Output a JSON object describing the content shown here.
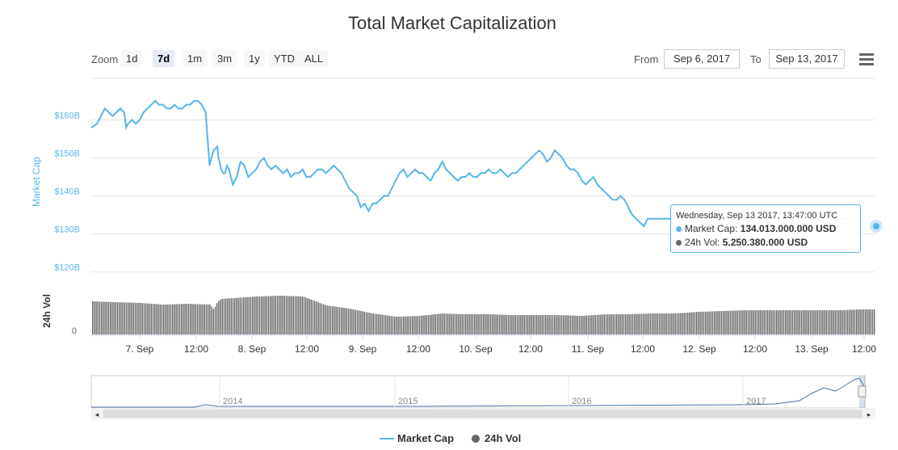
{
  "page_title": "Total Market Capitalization",
  "zoom": {
    "label": "Zoom",
    "buttons": [
      "1d",
      "7d",
      "1m",
      "3m",
      "1y",
      "YTD",
      "ALL"
    ],
    "active": "7d"
  },
  "range": {
    "from_label": "From",
    "from_value": "Sep 6, 2017",
    "to_label": "To",
    "to_value": "Sep 13, 2017"
  },
  "menu_icon": "hamburger-menu-icon",
  "colors": {
    "market_cap": "#58b5ea",
    "volume": "#666666",
    "grid": "#e6e6e6",
    "navigator": "#4572a7"
  },
  "tooltip": {
    "header": "Wednesday, Sep 13 2017, 13:47:00 UTC",
    "market_cap_label": "Market Cap:",
    "market_cap_value": "134.013.000.000 USD",
    "volume_label": "24h Vol:",
    "volume_value": "5.250.380.000 USD"
  },
  "legend": [
    {
      "name": "Market Cap",
      "color": "#58b5ea",
      "symbol": "line"
    },
    {
      "name": "24h Vol",
      "color": "#666666",
      "symbol": "circle"
    }
  ],
  "chart_data": {
    "type": "line",
    "title": "Total Market Capitalization",
    "ylabel": "Market Cap",
    "ylabel_secondary": "24h Vol",
    "x_tick_labels": [
      "7. Sep",
      "12:00",
      "8. Sep",
      "12:00",
      "9. Sep",
      "12:00",
      "10. Sep",
      "12:00",
      "11. Sep",
      "12:00",
      "12. Sep",
      "12:00",
      "13. Sep",
      "12:00"
    ],
    "y_tick_labels": [
      "$120B",
      "$130B",
      "$140B",
      "$150B",
      "$160B"
    ],
    "volume_tick_labels": [
      "0"
    ],
    "ylim": [
      118,
      172
    ],
    "x_range_hours": [
      -6.5,
      35.7
    ],
    "series": [
      {
        "name": "Market Cap",
        "unit": "USD billions",
        "x_hours_from_sep6": [
          -6.5,
          -5,
          -4,
          -3,
          -2,
          -1,
          0,
          1,
          2,
          2.5,
          3,
          4,
          5,
          6,
          7,
          8,
          9,
          10,
          11,
          12,
          13,
          14,
          15,
          16,
          17,
          18,
          19,
          20,
          21,
          22,
          23,
          24,
          25,
          26,
          26.3,
          26.6,
          27,
          27.5,
          28,
          28.5,
          29,
          30,
          31,
          32,
          33,
          34,
          35,
          36,
          37,
          38,
          39,
          40,
          41,
          42,
          43,
          44,
          45,
          46,
          47,
          48,
          49,
          50,
          51,
          52,
          53,
          54,
          55,
          56,
          57,
          58,
          59,
          60,
          61,
          62,
          63,
          64,
          65,
          66,
          67,
          68,
          69,
          70,
          71,
          72,
          73,
          74,
          75,
          76,
          77,
          78,
          79,
          80,
          81,
          82,
          83,
          84,
          85,
          86,
          87,
          88,
          89,
          90,
          91,
          92,
          93,
          94,
          95,
          96,
          97,
          98,
          99,
          100,
          101,
          102,
          103,
          104,
          105,
          106,
          107,
          108,
          109,
          110,
          111,
          112,
          113,
          114,
          115,
          116,
          117,
          118,
          119,
          120,
          121,
          122,
          123,
          124,
          125,
          126,
          127,
          128,
          129,
          130,
          131,
          132,
          133,
          134,
          135,
          136,
          137,
          138,
          139,
          140,
          141,
          142,
          143,
          144,
          145,
          146,
          147,
          148,
          149,
          150,
          151,
          152,
          153,
          154,
          155,
          156,
          157,
          158,
          159,
          160,
          161,
          162,
          163,
          164,
          165,
          166,
          167,
          168,
          169,
          170,
          171,
          172,
          173,
          174,
          175,
          176,
          177,
          178,
          179,
          180,
          181,
          182,
          183,
          184,
          185,
          186,
          187,
          188,
          189,
          190,
          191,
          192,
          193,
          194,
          195,
          196,
          197
        ],
        "values": [
          158,
          159,
          161,
          163,
          162,
          161,
          162,
          163,
          162,
          158,
          159,
          160,
          159,
          160,
          162,
          163,
          164,
          165,
          164,
          164,
          163,
          163,
          164,
          163,
          163,
          164,
          164,
          165,
          165,
          164,
          162,
          148,
          152,
          153,
          150,
          149,
          147,
          146,
          146,
          148,
          147,
          143,
          145,
          149,
          148,
          145,
          146,
          147,
          149,
          150,
          148,
          147,
          148,
          147,
          146,
          147,
          145,
          146,
          146,
          147,
          145,
          145,
          146,
          147,
          147,
          146,
          147,
          148,
          147,
          146,
          144,
          142,
          141,
          140,
          137,
          138,
          136,
          138,
          138,
          139,
          140,
          140,
          142,
          144,
          146,
          147,
          145,
          146,
          147,
          146,
          146,
          145,
          144,
          146,
          147,
          149,
          147,
          146,
          145,
          144,
          145,
          145,
          146,
          145,
          145,
          146,
          146,
          147,
          146,
          146,
          147,
          146,
          145,
          146,
          146,
          147,
          148,
          149,
          150,
          151,
          152,
          151,
          149,
          150,
          152,
          151,
          150,
          148,
          147,
          147,
          146,
          144,
          143,
          144,
          145,
          143,
          142,
          141,
          140,
          139,
          139,
          140,
          139,
          137,
          135,
          134,
          133,
          132,
          134,
          134,
          134,
          134,
          134,
          134,
          134,
          134,
          134,
          134,
          134,
          134,
          134,
          134,
          134,
          134,
          134,
          134,
          134,
          134,
          134,
          134,
          134,
          134,
          134,
          134,
          134,
          134,
          134,
          134,
          134,
          134,
          134,
          134,
          134,
          134,
          134,
          134,
          134,
          134,
          134,
          134,
          134,
          134,
          134,
          134,
          134,
          134,
          134,
          134,
          134,
          134,
          134,
          134
        ]
      },
      {
        "name": "24h Vol",
        "unit": "relative",
        "x_hours_from_sep6": [
          -6.5,
          0,
          6,
          12,
          18,
          24,
          25,
          26,
          27,
          30,
          36,
          42,
          48,
          54,
          60,
          66,
          72,
          78,
          84,
          90,
          96,
          102,
          108,
          114,
          120,
          126,
          132,
          138,
          144,
          150,
          156,
          162,
          168,
          174,
          180,
          186,
          192,
          197
        ],
        "values": [
          0.82,
          0.8,
          0.78,
          0.74,
          0.76,
          0.74,
          0.62,
          0.82,
          0.88,
          0.9,
          0.94,
          0.96,
          0.94,
          0.72,
          0.64,
          0.52,
          0.44,
          0.46,
          0.52,
          0.5,
          0.5,
          0.48,
          0.48,
          0.48,
          0.46,
          0.5,
          0.5,
          0.52,
          0.52,
          0.56,
          0.58,
          0.6,
          0.6,
          0.6,
          0.6,
          0.6,
          0.62,
          0.62
        ]
      }
    ],
    "navigator": {
      "x_labels": [
        "2014",
        "2015",
        "2016",
        "2017"
      ]
    }
  }
}
